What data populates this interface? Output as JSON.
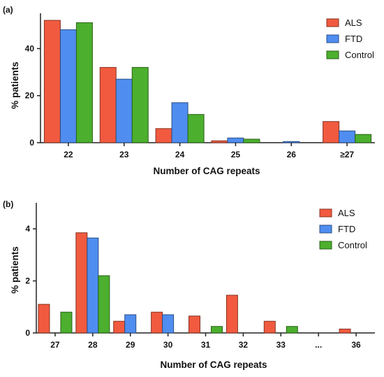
{
  "chart_data": [
    {
      "panel_label": "(a)",
      "type": "bar",
      "categories": [
        "22",
        "23",
        "24",
        "25",
        "26",
        "≥27"
      ],
      "series": [
        {
          "name": "ALS",
          "values": [
            52,
            32,
            6,
            0.8,
            0,
            9
          ],
          "color": "#f15a3f"
        },
        {
          "name": "FTD",
          "values": [
            48,
            27,
            17,
            2,
            0.5,
            5
          ],
          "color": "#4f8df0"
        },
        {
          "name": "Control",
          "values": [
            51,
            32,
            12,
            1.5,
            0,
            3.5
          ],
          "color": "#4caf2e"
        }
      ],
      "xlabel": "Number of CAG repeats",
      "ylabel": "% patients",
      "ylim": [
        0,
        55
      ],
      "yticks": [
        "0",
        "20",
        "40"
      ],
      "legend_position": "top-right",
      "grid": false
    },
    {
      "panel_label": "(b)",
      "type": "bar",
      "categories": [
        "27",
        "28",
        "29",
        "30",
        "31",
        "32",
        "33",
        "...",
        "36"
      ],
      "series": [
        {
          "name": "ALS",
          "values": [
            1.1,
            3.85,
            0.45,
            0.8,
            0.65,
            1.45,
            0.45,
            0,
            0.15
          ],
          "color": "#f15a3f"
        },
        {
          "name": "FTD",
          "values": [
            0,
            3.65,
            0.7,
            0.7,
            0,
            0,
            0,
            0,
            0
          ],
          "color": "#4f8df0"
        },
        {
          "name": "Control",
          "values": [
            0.8,
            2.2,
            0,
            0,
            0.25,
            0,
            0.25,
            0,
            0
          ],
          "color": "#4caf2e"
        }
      ],
      "xlabel": "Number of CAG repeats",
      "ylabel": "% patients",
      "ylim": [
        0,
        5
      ],
      "yticks": [
        "0",
        "2",
        "4"
      ],
      "legend_position": "top-right",
      "grid": false
    }
  ]
}
